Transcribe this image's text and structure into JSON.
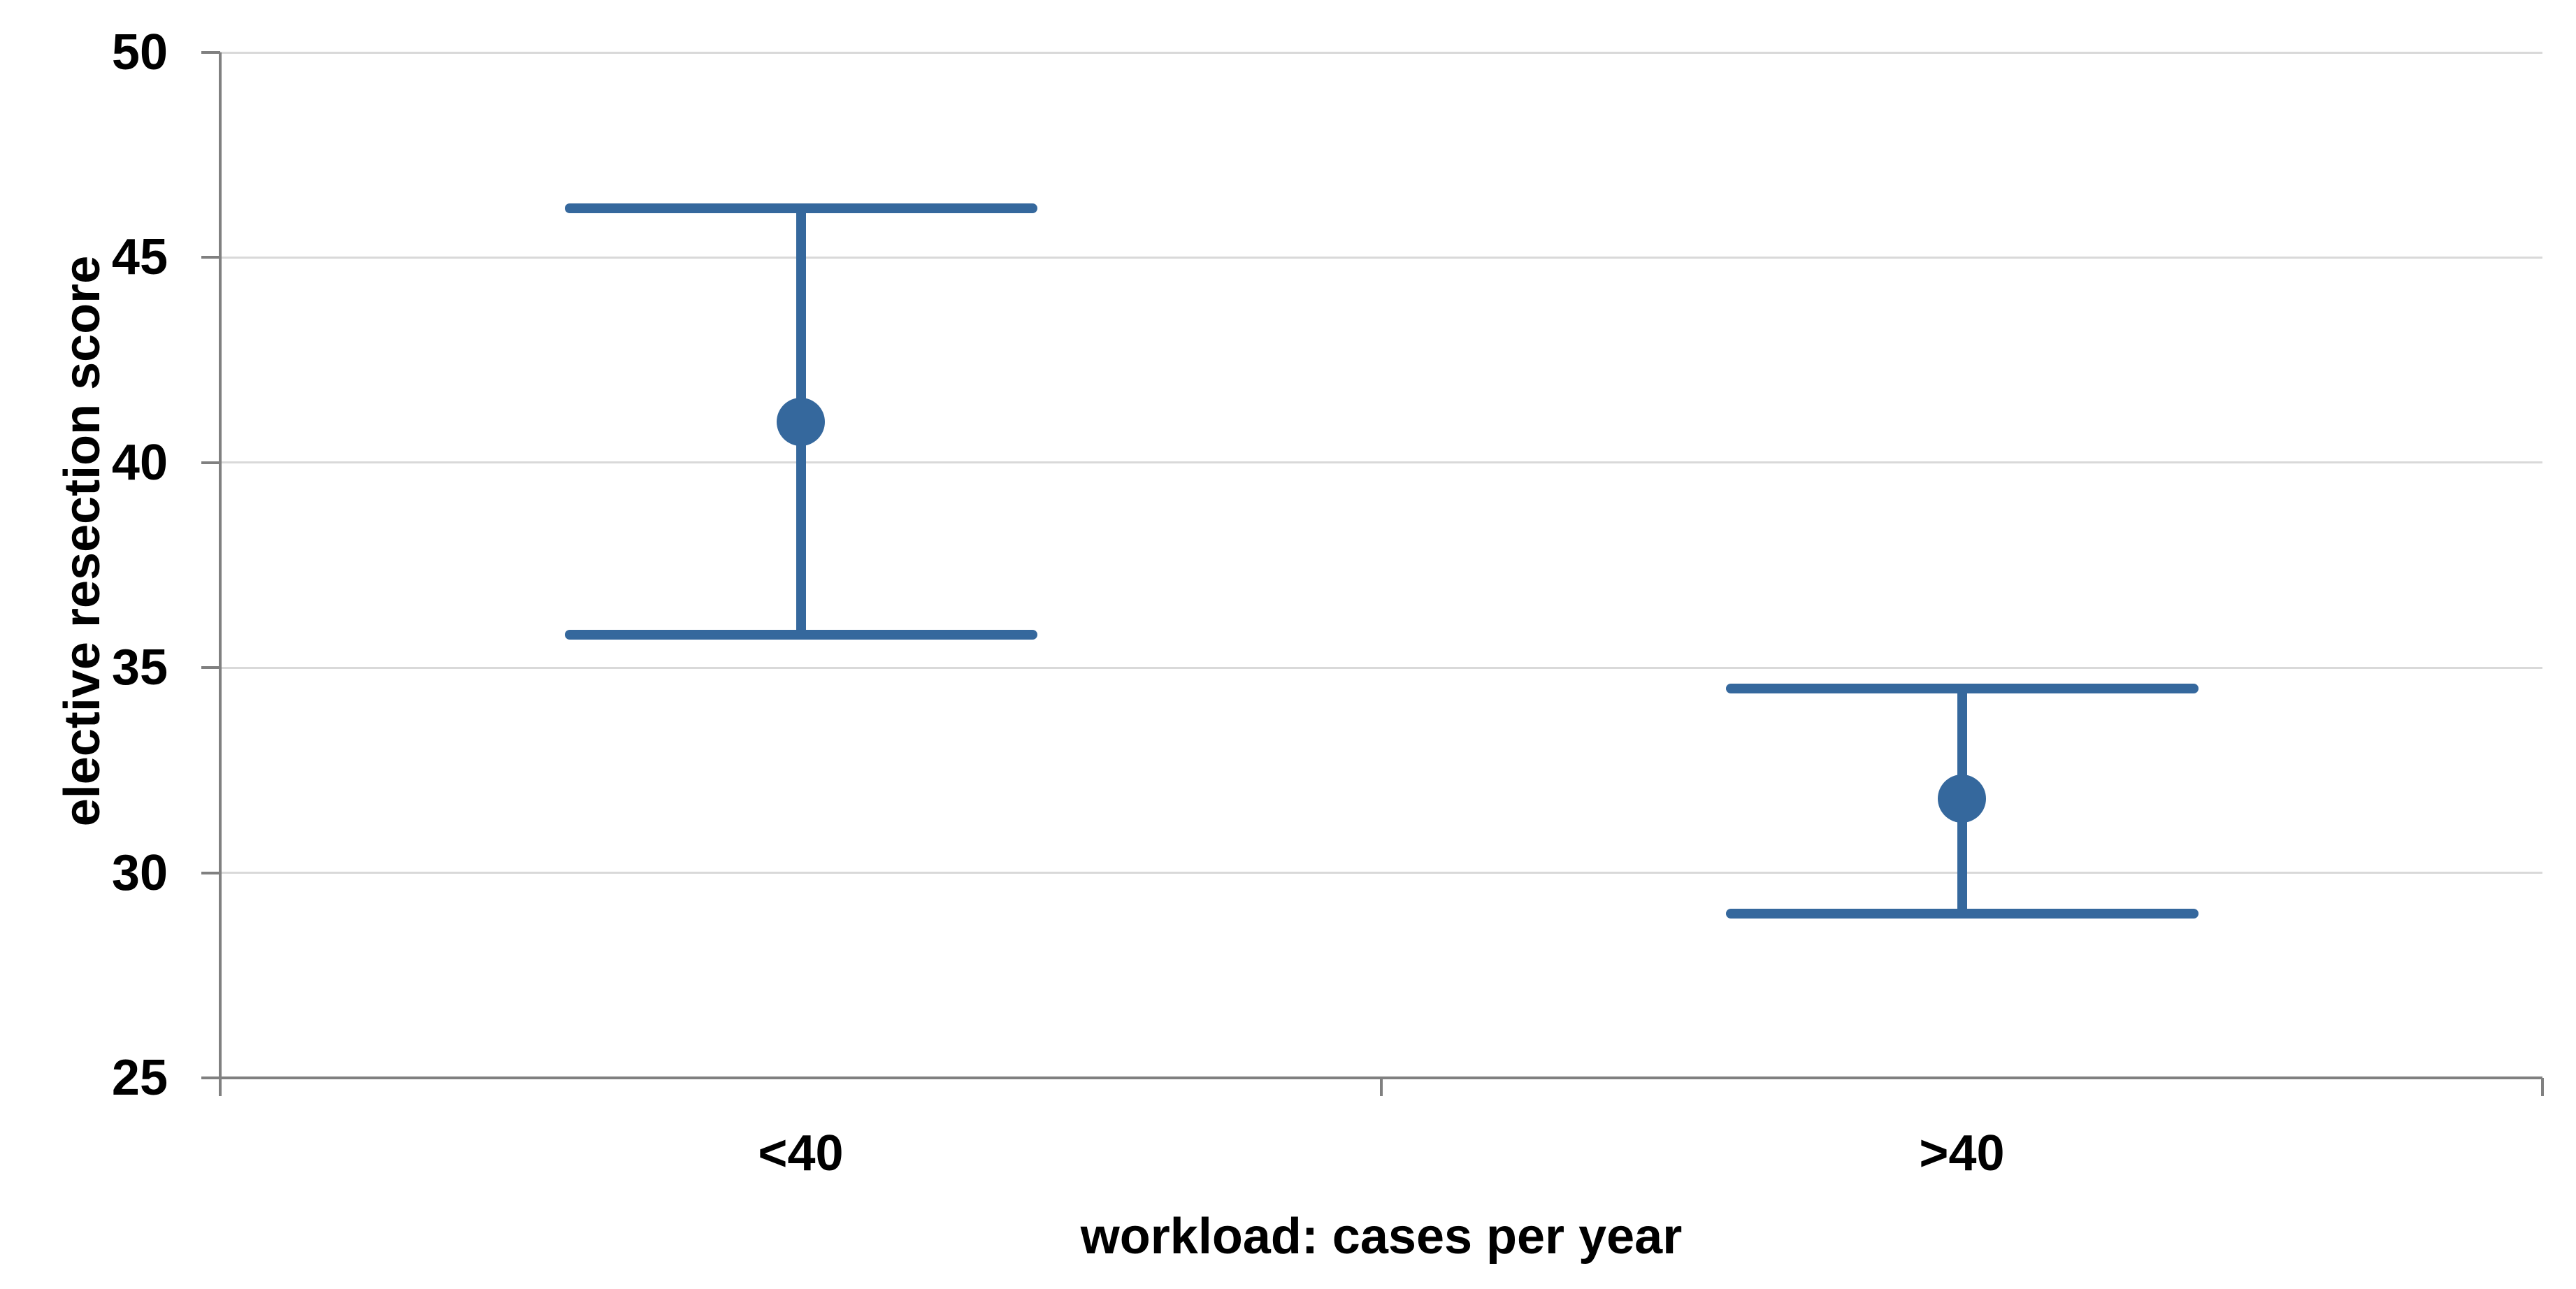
{
  "figure": {
    "background_color": "#ffffff"
  },
  "chart_data": {
    "type": "scatter",
    "subtype": "mean-with-error-bars",
    "title": "",
    "xlabel": "workload: cases per year",
    "ylabel": "elective resection score",
    "categories": [
      "<40",
      ">40"
    ],
    "series": [
      {
        "name": "elective resection score",
        "points": [
          {
            "category": "<40",
            "mean": 41.0,
            "upper": 46.2,
            "lower": 35.8
          },
          {
            "category": ">40",
            "mean": 31.8,
            "upper": 34.5,
            "lower": 29.0
          }
        ]
      }
    ],
    "ylim": [
      25,
      50
    ],
    "yticks": [
      25,
      30,
      35,
      40,
      45,
      50
    ],
    "grid": true,
    "legend": false,
    "colors": {
      "series": "#35689D",
      "gridline": "#D9D9D9",
      "axis": "#808080",
      "text": "#000000"
    }
  }
}
